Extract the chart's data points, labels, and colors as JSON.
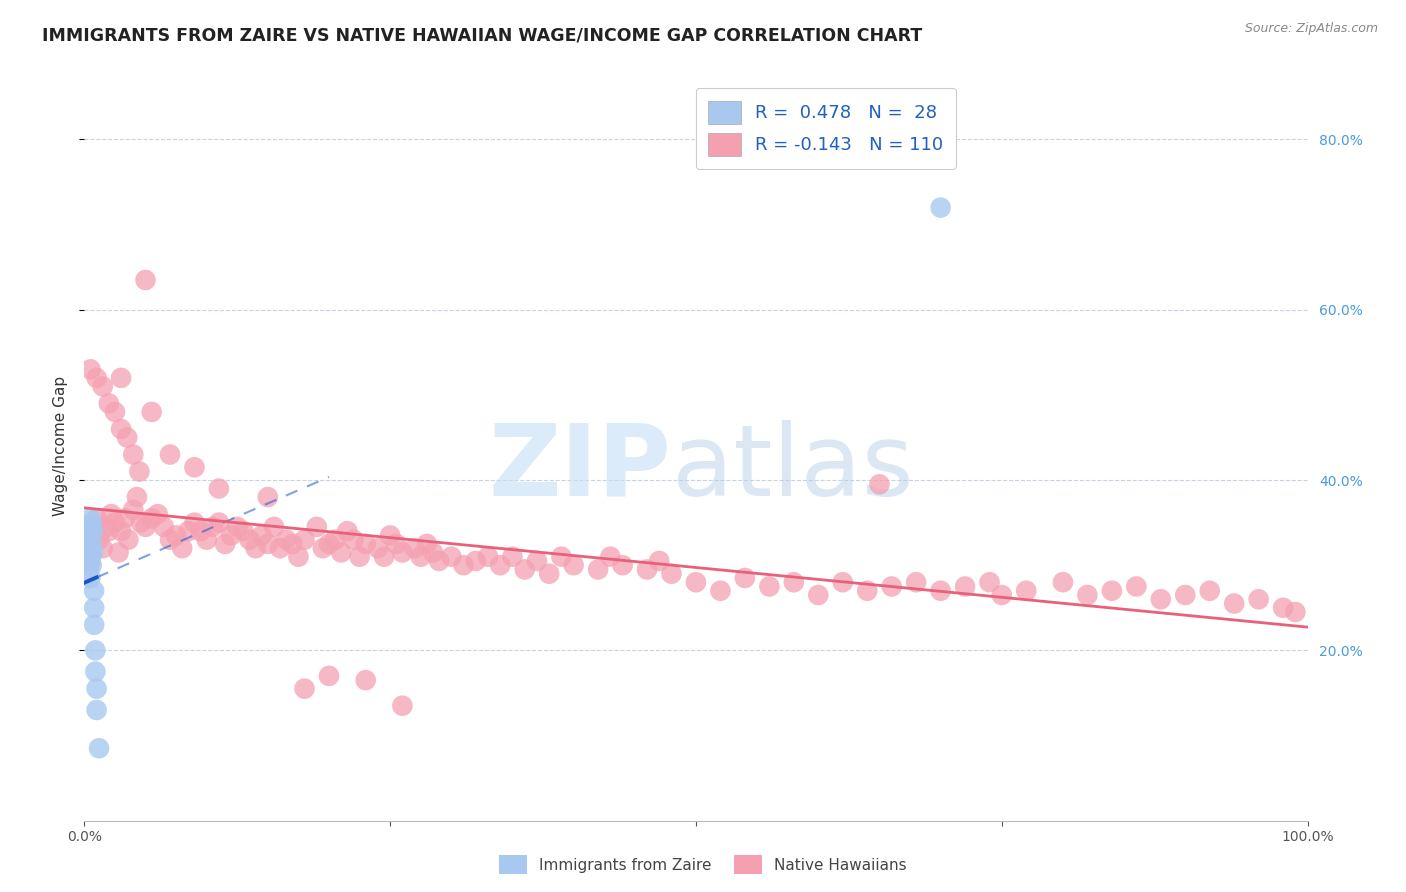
{
  "title": "IMMIGRANTS FROM ZAIRE VS NATIVE HAWAIIAN WAGE/INCOME GAP CORRELATION CHART",
  "source": "Source: ZipAtlas.com",
  "ylabel": "Wage/Income Gap",
  "right_ytick_vals": [
    0.2,
    0.4,
    0.6,
    0.8
  ],
  "right_ytick_labels": [
    "20.0%",
    "40.0%",
    "60.0%",
    "80.0%"
  ],
  "zaire_R": 0.478,
  "zaire_N": 28,
  "hawaiian_R": -0.143,
  "hawaiian_N": 110,
  "zaire_color": "#a8c8f0",
  "hawaiian_color": "#f4a0b0",
  "zaire_line_color": "#1a56c8",
  "hawaiian_line_color": "#e8607a",
  "legend_text_color": "#2060c0",
  "background_color": "#ffffff",
  "grid_color": "#c0cfe0",
  "xlim": [
    0.0,
    1.0
  ],
  "ylim": [
    0.0,
    0.88
  ],
  "zaire_points_x": [
    0.003,
    0.003,
    0.003,
    0.003,
    0.003,
    0.004,
    0.004,
    0.004,
    0.004,
    0.005,
    0.005,
    0.005,
    0.005,
    0.005,
    0.006,
    0.006,
    0.006,
    0.007,
    0.007,
    0.008,
    0.008,
    0.008,
    0.009,
    0.009,
    0.01,
    0.01,
    0.012,
    0.7
  ],
  "zaire_points_y": [
    0.345,
    0.335,
    0.325,
    0.315,
    0.305,
    0.34,
    0.33,
    0.32,
    0.295,
    0.355,
    0.335,
    0.32,
    0.31,
    0.285,
    0.35,
    0.325,
    0.3,
    0.34,
    0.315,
    0.27,
    0.25,
    0.23,
    0.2,
    0.175,
    0.155,
    0.13,
    0.085,
    0.72
  ],
  "hawaiian_points_x": [
    0.003,
    0.004,
    0.005,
    0.006,
    0.007,
    0.008,
    0.01,
    0.012,
    0.015,
    0.018,
    0.02,
    0.022,
    0.025,
    0.028,
    0.03,
    0.033,
    0.036,
    0.04,
    0.043,
    0.046,
    0.05,
    0.055,
    0.06,
    0.065,
    0.07,
    0.075,
    0.08,
    0.085,
    0.09,
    0.095,
    0.1,
    0.105,
    0.11,
    0.115,
    0.12,
    0.125,
    0.13,
    0.135,
    0.14,
    0.145,
    0.15,
    0.155,
    0.16,
    0.165,
    0.17,
    0.175,
    0.18,
    0.19,
    0.195,
    0.2,
    0.205,
    0.21,
    0.215,
    0.22,
    0.225,
    0.23,
    0.24,
    0.245,
    0.25,
    0.255,
    0.26,
    0.27,
    0.275,
    0.28,
    0.285,
    0.29,
    0.3,
    0.31,
    0.32,
    0.33,
    0.34,
    0.35,
    0.36,
    0.37,
    0.38,
    0.39,
    0.4,
    0.42,
    0.43,
    0.44,
    0.46,
    0.47,
    0.48,
    0.5,
    0.52,
    0.54,
    0.56,
    0.58,
    0.6,
    0.62,
    0.64,
    0.65,
    0.66,
    0.68,
    0.7,
    0.72,
    0.74,
    0.75,
    0.77,
    0.8,
    0.82,
    0.84,
    0.86,
    0.88,
    0.9,
    0.92,
    0.94,
    0.96,
    0.98,
    0.99,
    0.03,
    0.05
  ],
  "hawaiian_points_y": [
    0.31,
    0.32,
    0.305,
    0.34,
    0.33,
    0.345,
    0.355,
    0.33,
    0.32,
    0.345,
    0.34,
    0.36,
    0.35,
    0.315,
    0.34,
    0.355,
    0.33,
    0.365,
    0.38,
    0.35,
    0.345,
    0.355,
    0.36,
    0.345,
    0.33,
    0.335,
    0.32,
    0.34,
    0.35,
    0.34,
    0.33,
    0.345,
    0.35,
    0.325,
    0.335,
    0.345,
    0.34,
    0.33,
    0.32,
    0.335,
    0.325,
    0.345,
    0.32,
    0.33,
    0.325,
    0.31,
    0.33,
    0.345,
    0.32,
    0.325,
    0.33,
    0.315,
    0.34,
    0.33,
    0.31,
    0.325,
    0.32,
    0.31,
    0.335,
    0.325,
    0.315,
    0.32,
    0.31,
    0.325,
    0.315,
    0.305,
    0.31,
    0.3,
    0.305,
    0.31,
    0.3,
    0.31,
    0.295,
    0.305,
    0.29,
    0.31,
    0.3,
    0.295,
    0.31,
    0.3,
    0.295,
    0.305,
    0.29,
    0.28,
    0.27,
    0.285,
    0.275,
    0.28,
    0.265,
    0.28,
    0.27,
    0.395,
    0.275,
    0.28,
    0.27,
    0.275,
    0.28,
    0.265,
    0.27,
    0.28,
    0.265,
    0.27,
    0.275,
    0.26,
    0.265,
    0.27,
    0.255,
    0.26,
    0.25,
    0.245,
    0.52,
    0.635
  ],
  "hawaiian_extra_x": [
    0.005,
    0.01,
    0.015,
    0.02,
    0.025,
    0.03,
    0.035,
    0.04,
    0.045,
    0.055,
    0.07,
    0.09,
    0.11,
    0.15,
    0.18,
    0.2,
    0.23,
    0.26
  ],
  "hawaiian_extra_y": [
    0.53,
    0.52,
    0.51,
    0.49,
    0.48,
    0.46,
    0.45,
    0.43,
    0.41,
    0.48,
    0.43,
    0.415,
    0.39,
    0.38,
    0.155,
    0.17,
    0.165,
    0.135
  ]
}
